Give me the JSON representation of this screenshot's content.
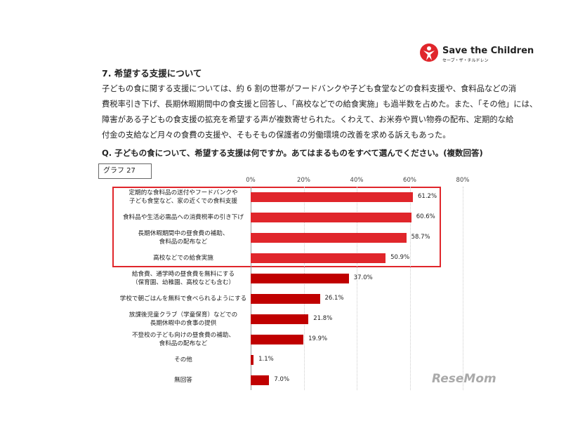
{
  "header": {
    "logo": "Save the Children",
    "logo_sub": "セーブ・ザ・チルドレン",
    "title": "7. 希望する支援について"
  },
  "body": {
    "lines": [
      "子どもの食に関する支援については、約 6 割の世帯がフードバンクや子ども食堂などの食料支援や、食料品などの消",
      "費税率引き下げ、長期休暇期間中の食支援と回答し、「高校などでの給食実施」も過半数を占めた。また、「その他」には、",
      "障害がある子どもの食支援の拡充を希望する声が複数寄せられた。くわえて、お米券や買い物券の配布、定期的な給",
      "付金の支給など月々の食費の支援や、そもそもの保護者の労働環境の改善を求める訴えもあった。"
    ],
    "question": "Q. 子どもの食について、希望する支援は何ですか。あてはまるものをすべて選んでください。(複数回答)"
  },
  "watermark": "ReseMom",
  "chart_data": {
    "type": "hbar",
    "label": "グラフ 27",
    "color": "#c00000",
    "highlight_color": "#e0262b",
    "highlight_count": 4,
    "grid": true,
    "categories": [
      "定期的な食料品の送付やフードバンクや\n子ども食堂など、家の近くでの食料支援",
      "食料品や生活必需品への消費税率の引き下げ",
      "長期休暇期間中の昼食費の補助、\n食料品の配布など",
      "高校などでの給食実施",
      "給食費、通学時の昼食費を無料にする\n（保育園、幼稚園、高校なども含む）",
      "学校で朝ごはんを無料で食べられるようにする",
      "放課後児童クラブ（学童保育）などでの\n長期休暇中の食事の提供",
      "不登校の子ども向けの昼食費の補助、\n食料品の配布など",
      "その他",
      "無回答"
    ],
    "values": [
      61.2,
      60.6,
      58.7,
      50.9,
      37,
      26.1,
      21.8,
      19.9,
      1.1,
      7
    ],
    "value_labels": [
      "61.2%",
      "60.6%",
      "58.7%",
      "50.9%",
      "37.0%",
      "26.1%",
      "21.8%",
      "19.9%",
      "1.1%",
      "7.0%"
    ],
    "xlim": [
      0,
      80
    ],
    "xticks": [
      {
        "value": 0,
        "label": "0%"
      },
      {
        "value": 20,
        "label": "20%"
      },
      {
        "value": 40,
        "label": "40%"
      },
      {
        "value": 60,
        "label": "60%"
      },
      {
        "value": 80,
        "label": "80%"
      }
    ]
  }
}
